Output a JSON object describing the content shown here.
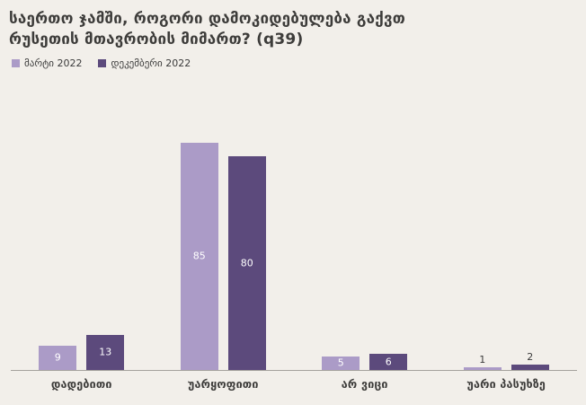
{
  "title": {
    "line1": "საერთო ჯამში, როგორი დამოკიდებულება გაქვთ",
    "line2": "რუსეთის მთავრობის მიმართ? (q39)"
  },
  "chart_data": {
    "type": "bar",
    "title": "საერთო ჯამში, როგორი დამოკიდებულება გაქვთ რუსეთის მთავრობის მიმართ? (q39)",
    "categories": [
      "დადებითი",
      "უარყოფითი",
      "არ ვიცი",
      "უარი პასუხზე"
    ],
    "series": [
      {
        "name": "მარტი 2022",
        "color": "#ab9bc7",
        "values": [
          9,
          85,
          5,
          1
        ]
      },
      {
        "name": "დეკემბერი 2022",
        "color": "#5c4a7c",
        "values": [
          13,
          80,
          6,
          2
        ]
      }
    ],
    "ylim": [
      0,
      90
    ],
    "grid": false,
    "legend_position": "top-left",
    "data_labels": true,
    "xlabel": "",
    "ylabel": ""
  },
  "colors": {
    "background": "#f2efea",
    "title_text": "#3d3c3a",
    "axis_line": "#a5a29d",
    "label_inside": "#ffffff",
    "label_outside": "#3a3a3a"
  }
}
